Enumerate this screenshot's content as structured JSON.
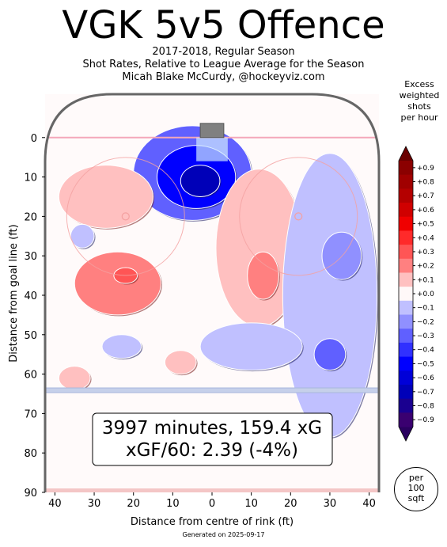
{
  "title": "VGK 5v5 Offence",
  "subtitle_lines": [
    "2017-2018, Regular Season",
    "Shot Rates, Relative to League Average for the Season",
    "Micah Blake McCurdy, @hockeyviz.com"
  ],
  "colorbar_title": [
    "Excess",
    "weighted",
    "shots",
    "per hour"
  ],
  "colorbar_ticks": [
    "+0.9",
    "+0.8",
    "+0.7",
    "+0.6",
    "+0.5",
    "+0.4",
    "+0.3",
    "+0.2",
    "+0.1",
    "+0.0",
    "−0.1",
    "−0.2",
    "−0.3",
    "−0.4",
    "−0.5",
    "−0.6",
    "−0.7",
    "−0.8",
    "−0.9"
  ],
  "colorbar_colors": [
    "#8b0000",
    "#a00000",
    "#b40000",
    "#d00000",
    "#f00000",
    "#ff2a2a",
    "#ff5555",
    "#ff8080",
    "#ffc0c0",
    "#fff8f8",
    "#c0c0ff",
    "#9090ff",
    "#6060ff",
    "#3030ff",
    "#0000ff",
    "#0000d8",
    "#0000b8",
    "#1a0090",
    "#3a0070"
  ],
  "per_badge": [
    "per",
    "100",
    "sqft"
  ],
  "summary": {
    "line1": "3997 minutes, 159.4 xG",
    "line2": "xGF/60: 2.39 (-4%)"
  },
  "footer": "Generated on 2025-09-17",
  "chart_data": {
    "type": "heatmap",
    "title": "VGK 5v5 Offence",
    "xlabel": "Distance from centre of rink (ft)",
    "ylabel": "Distance from goal line (ft)",
    "xlim": [
      -42.5,
      42.5
    ],
    "ylim": [
      -11,
      90
    ],
    "x_ticks": [
      -40,
      -30,
      -20,
      -10,
      0,
      10,
      20,
      30,
      40
    ],
    "x_tick_labels": [
      "40",
      "30",
      "20",
      "10",
      "0",
      "10",
      "20",
      "30",
      "40"
    ],
    "y_ticks": [
      0,
      10,
      20,
      30,
      40,
      50,
      60,
      70,
      80,
      90
    ],
    "y_tick_labels": [
      "0",
      "10",
      "20",
      "30",
      "40",
      "50",
      "60",
      "70",
      "80",
      "90"
    ],
    "colorbar_range": [
      -0.9,
      0.9
    ],
    "regions": [
      {
        "x": -5,
        "y": 9,
        "rx": 15,
        "ry": 12,
        "value": -0.3
      },
      {
        "x": -4,
        "y": 10,
        "rx": 10,
        "ry": 8,
        "value": -0.5
      },
      {
        "x": -3,
        "y": 11,
        "rx": 5,
        "ry": 4,
        "value": -0.7
      },
      {
        "x": -24,
        "y": 37,
        "rx": 11,
        "ry": 8,
        "value": 0.2
      },
      {
        "x": -22,
        "y": 35,
        "rx": 3,
        "ry": 2,
        "value": 0.3
      },
      {
        "x": -27,
        "y": 15,
        "rx": 12,
        "ry": 8,
        "value": 0.1
      },
      {
        "x": 12,
        "y": 28,
        "rx": 11,
        "ry": 20,
        "value": 0.1
      },
      {
        "x": 13,
        "y": 35,
        "rx": 4,
        "ry": 6,
        "value": 0.2
      },
      {
        "x": 30,
        "y": 40,
        "rx": 12,
        "ry": 36,
        "value": -0.1
      },
      {
        "x": 33,
        "y": 30,
        "rx": 5,
        "ry": 6,
        "value": -0.2
      },
      {
        "x": 30,
        "y": 55,
        "rx": 4,
        "ry": 4,
        "value": -0.3
      },
      {
        "x": 10,
        "y": 53,
        "rx": 13,
        "ry": 6,
        "value": -0.1
      },
      {
        "x": -23,
        "y": 53,
        "rx": 5,
        "ry": 3,
        "value": -0.1
      },
      {
        "x": -8,
        "y": 57,
        "rx": 4,
        "ry": 3,
        "value": 0.1
      },
      {
        "x": -35,
        "y": 61,
        "rx": 4,
        "ry": 3,
        "value": 0.1
      },
      {
        "x": -33,
        "y": 25,
        "rx": 3,
        "ry": 3,
        "value": -0.1
      }
    ]
  }
}
